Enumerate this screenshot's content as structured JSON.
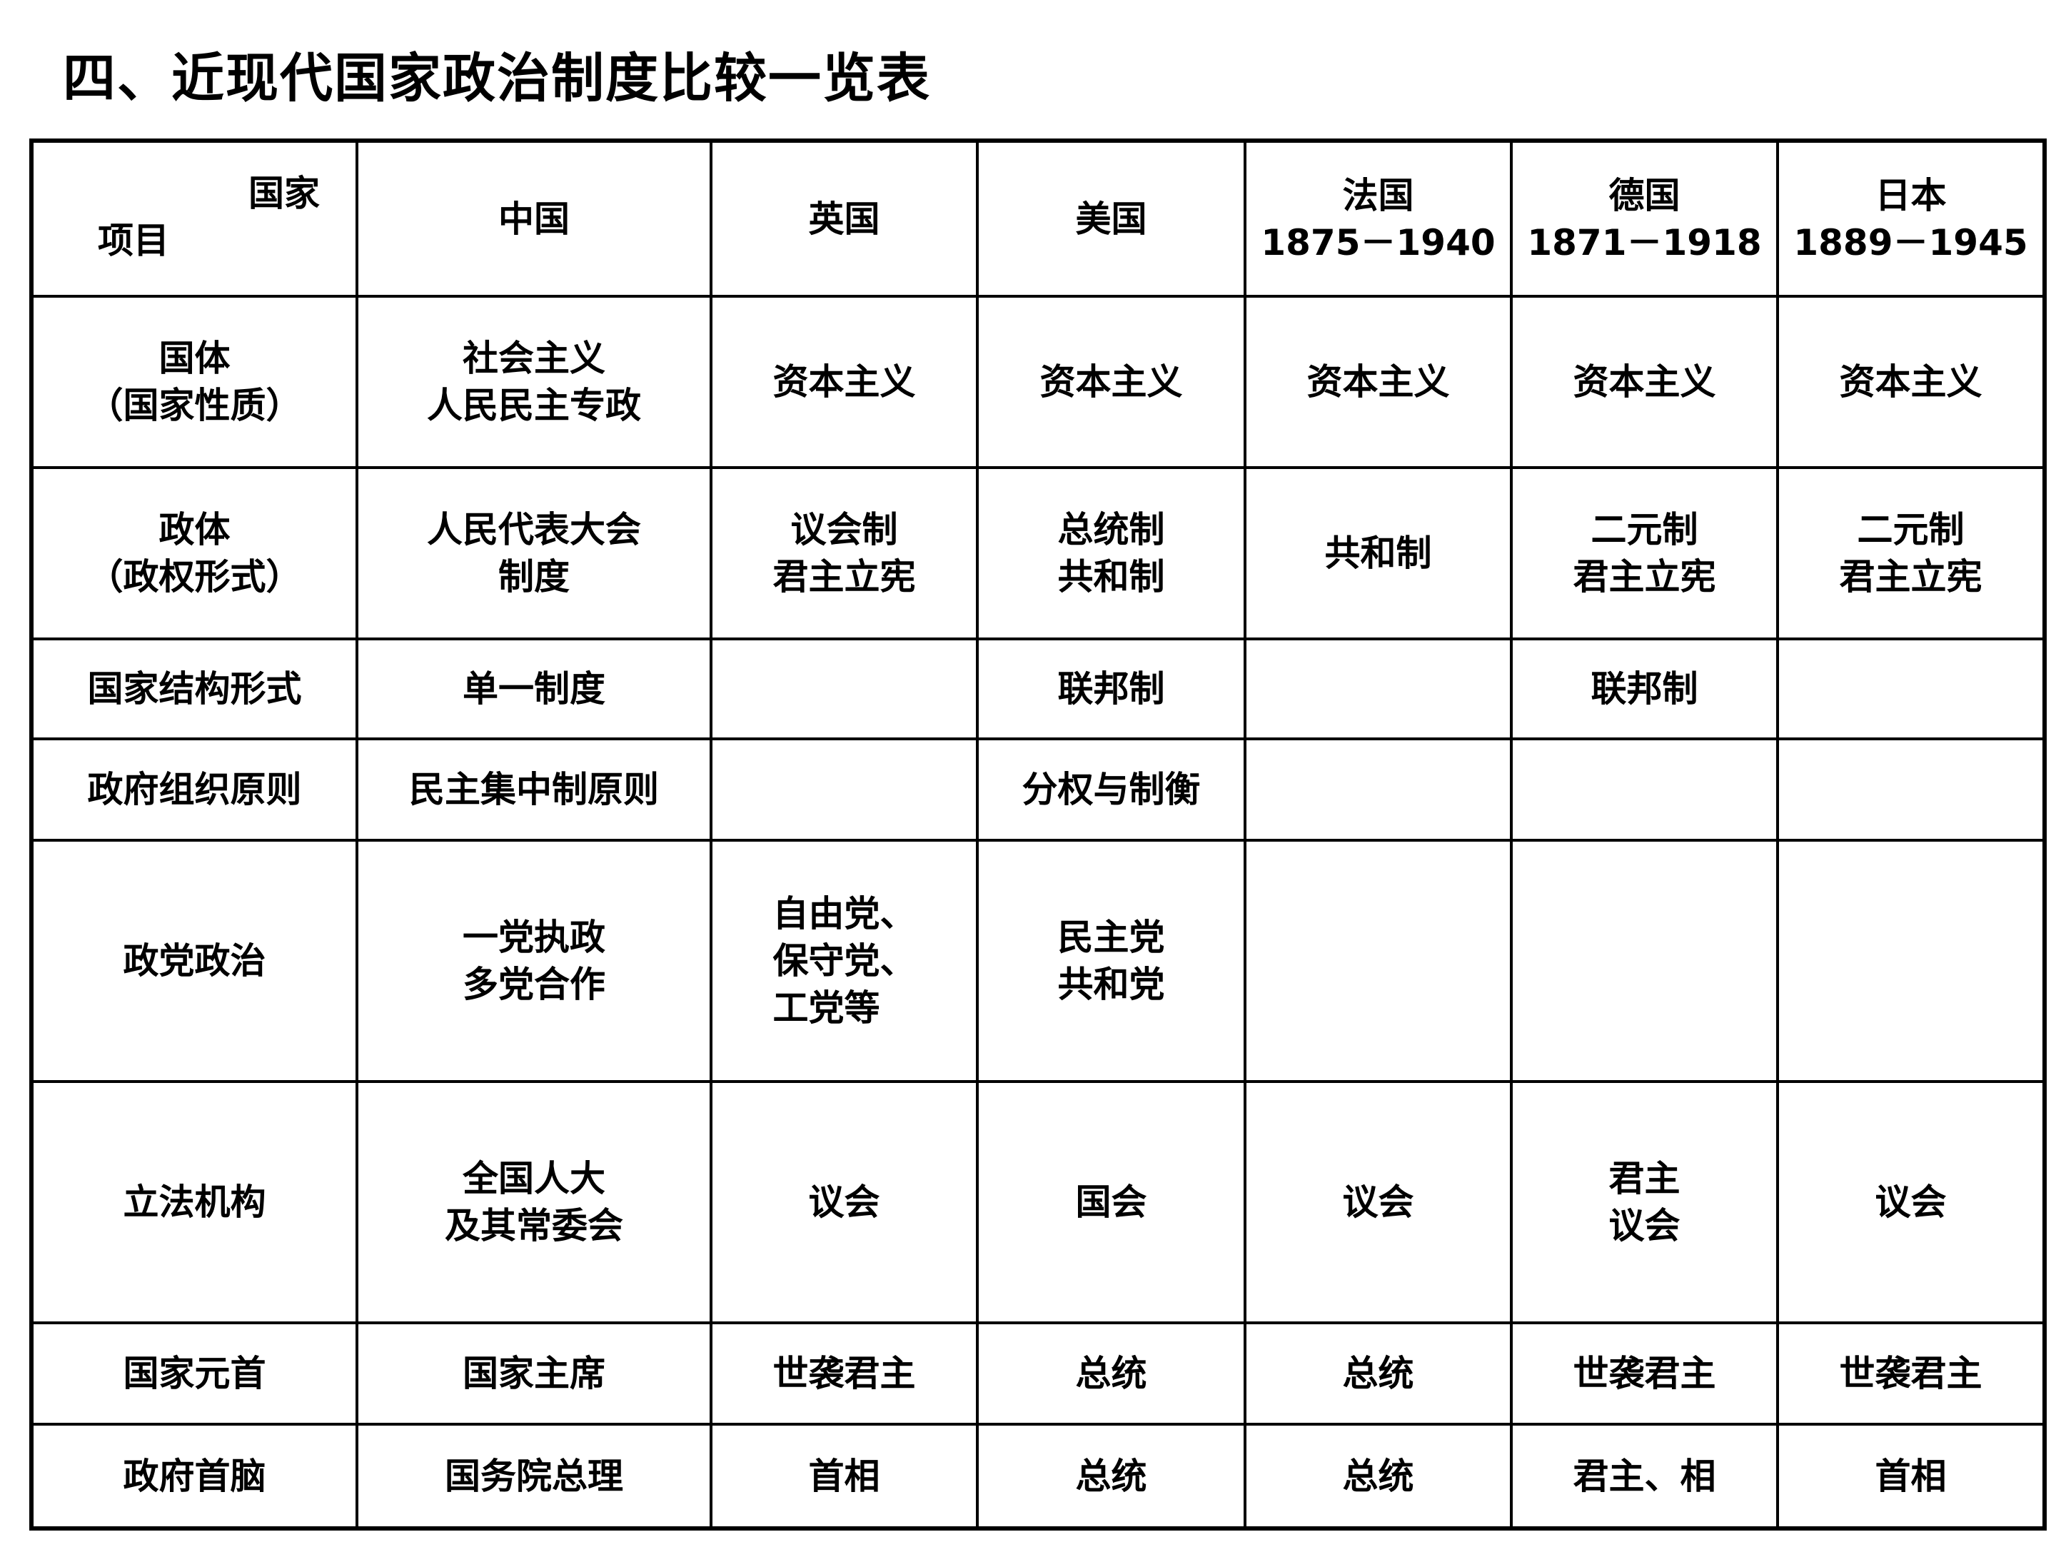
{
  "title": "四、近现代国家政治制度比较一览表",
  "table": {
    "corner": {
      "top_right": "国家",
      "bottom_left": "项目"
    },
    "columns": [
      "中国",
      "英国",
      "美国",
      "法国\n1875－1940",
      "德国\n1871－1918",
      "日本\n1889－1945"
    ],
    "rows": [
      {
        "label": "国体\n（国家性质）",
        "cells": [
          "社会主义\n人民民主专政",
          "资本主义",
          "资本主义",
          "资本主义",
          "资本主义",
          "资本主义"
        ]
      },
      {
        "label": "政体\n（政权形式）",
        "cells": [
          "人民代表大会\n制度",
          "议会制\n君主立宪",
          "总统制\n共和制",
          "共和制",
          "二元制\n君主立宪",
          "二元制\n君主立宪"
        ]
      },
      {
        "label": "国家结构形式",
        "cells": [
          "单一制度",
          "",
          "联邦制",
          "",
          "联邦制",
          ""
        ]
      },
      {
        "label": "政府组织原则",
        "cells": [
          "民主集中制原则",
          "",
          "分权与制衡",
          "",
          "",
          ""
        ]
      },
      {
        "label": "政党政治",
        "cells": [
          "一党执政\n多党合作",
          "自由党、\n保守党、\n工党等",
          "民主党\n共和党",
          "",
          "",
          ""
        ]
      },
      {
        "label": "立法机构",
        "cells": [
          "全国人大\n及其常委会",
          "议会",
          "国会",
          "议会",
          "君主\n议会",
          "议会"
        ]
      },
      {
        "label": "国家元首",
        "cells": [
          "国家主席",
          "世袭君主",
          "总统",
          "总统",
          "世袭君主",
          "世袭君主"
        ]
      },
      {
        "label": "政府首脑",
        "cells": [
          "国务院总理",
          "首相",
          "总统",
          "总统",
          "君主、相",
          "首相"
        ]
      }
    ]
  }
}
